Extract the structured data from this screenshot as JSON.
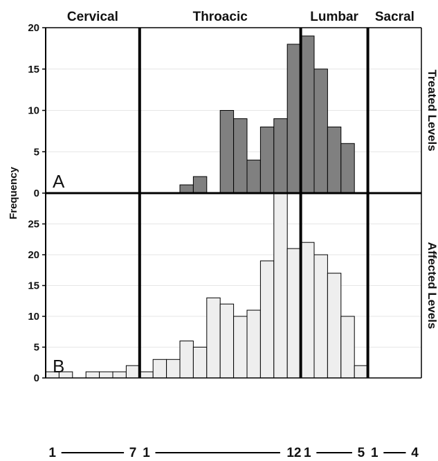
{
  "chart_data": {
    "type": "bar",
    "ylabel": "Frequency",
    "regions": [
      "Cervical",
      "Throacic",
      "Lumbar",
      "Sacral"
    ],
    "vertebral_levels": [
      "C1",
      "C2",
      "C3",
      "C4",
      "C5",
      "C6",
      "C7",
      "T1",
      "T2",
      "T3",
      "T4",
      "T5",
      "T6",
      "T7",
      "T8",
      "T9",
      "T10",
      "T11",
      "T12",
      "L1",
      "L2",
      "L3",
      "L4",
      "L5",
      "S1",
      "S2",
      "S3",
      "S4"
    ],
    "region_ranges": [
      {
        "region": "Cervical",
        "start_label": "1",
        "end_label": "7"
      },
      {
        "region": "Throacic",
        "start_label": "1",
        "end_label": "12"
      },
      {
        "region": "Lumbar",
        "start_label": "1",
        "end_label": "5"
      },
      {
        "region": "Sacral",
        "start_label": "1",
        "end_label": "4"
      }
    ],
    "panels": [
      {
        "letter": "A",
        "side_label": [
          "Treated",
          "Levels"
        ],
        "ylim": [
          0,
          20
        ],
        "yticks": [
          0,
          5,
          10,
          15,
          20
        ],
        "values": [
          0,
          0,
          0,
          0,
          0,
          0,
          0,
          0,
          0,
          0,
          1,
          2,
          0,
          10,
          9,
          4,
          8,
          9,
          18,
          19,
          15,
          8,
          6,
          0,
          0,
          0,
          0,
          0
        ],
        "color": "#808080"
      },
      {
        "letter": "B",
        "side_label": [
          "Affected",
          "Levels"
        ],
        "ylim": [
          0,
          30
        ],
        "yticks": [
          0,
          5,
          10,
          15,
          20,
          25
        ],
        "values": [
          1,
          1,
          0,
          1,
          1,
          1,
          2,
          1,
          3,
          3,
          6,
          5,
          13,
          12,
          10,
          11,
          19,
          30,
          21,
          22,
          20,
          17,
          10,
          2,
          0,
          0,
          0,
          0
        ],
        "color": "#eeeeee"
      }
    ]
  }
}
